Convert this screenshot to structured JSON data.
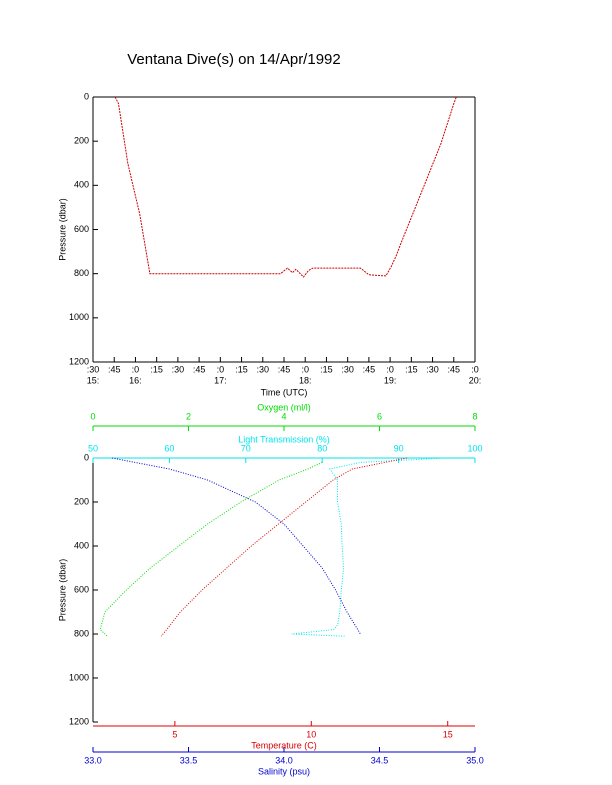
{
  "title": "Ventana Dive(s) on 14/Apr/1992",
  "chart_data": [
    {
      "type": "line",
      "x_label": "Time (UTC)",
      "y_label": "Pressure (dbar)",
      "y_reversed": true,
      "xlim": [
        15.5,
        20
      ],
      "ylim": [
        0,
        1200
      ],
      "yticks": [
        0,
        200,
        400,
        600,
        800,
        1000,
        1200
      ],
      "xticks": [
        {
          "value": 15.5,
          "label": ":30"
        },
        {
          "value": 15.75,
          "label": ":45"
        },
        {
          "value": 16,
          "label": ":0"
        },
        {
          "value": 16.25,
          "label": ":15"
        },
        {
          "value": 16.5,
          "label": ":30"
        },
        {
          "value": 16.75,
          "label": ":45"
        },
        {
          "value": 17,
          "label": ":0"
        },
        {
          "value": 17.25,
          "label": ":15"
        },
        {
          "value": 17.5,
          "label": ":30"
        },
        {
          "value": 17.75,
          "label": ":45"
        },
        {
          "value": 18,
          "label": ":0"
        },
        {
          "value": 18.25,
          "label": ":15"
        },
        {
          "value": 18.5,
          "label": ":30"
        },
        {
          "value": 18.75,
          "label": ":45"
        },
        {
          "value": 19,
          "label": ":0"
        },
        {
          "value": 19.25,
          "label": ":15"
        },
        {
          "value": 19.5,
          "label": ":30"
        },
        {
          "value": 19.75,
          "label": ":45"
        },
        {
          "value": 20,
          "label": ":0"
        }
      ],
      "xticks_hour": [
        {
          "value": 15.5,
          "label": "15:"
        },
        {
          "value": 16,
          "label": "16:"
        },
        {
          "value": 17,
          "label": "17:"
        },
        {
          "value": 18,
          "label": "18:"
        },
        {
          "value": 19,
          "label": "19:"
        },
        {
          "value": 20,
          "label": "20:"
        }
      ],
      "color": "#cc0000",
      "x": [
        15.76,
        15.8,
        15.91,
        16.05,
        16.17,
        16.76,
        17.71,
        17.79,
        17.85,
        17.89,
        17.98,
        18.04,
        18.09,
        18.65,
        18.75,
        18.95,
        19.01,
        19.07,
        19.13,
        19.36,
        19.6,
        19.75,
        19.78
      ],
      "values": [
        0,
        30,
        300,
        530,
        800,
        800,
        800,
        775,
        795,
        780,
        815,
        785,
        775,
        775,
        805,
        810,
        770,
        720,
        660,
        440,
        210,
        30,
        0
      ]
    },
    {
      "type": "profile",
      "y_label": "Pressure (dbar)",
      "y_reversed": true,
      "ylim": [
        0,
        1200
      ],
      "yticks": [
        0,
        200,
        400,
        600,
        800,
        1000,
        1200
      ],
      "x_axes": [
        {
          "label": "Light Transmission (%)",
          "color": "#00e5ee",
          "position": "top",
          "lim": [
            50,
            100
          ],
          "ticks": [
            50,
            60,
            70,
            80,
            90,
            100
          ]
        },
        {
          "label": "Oxygen (ml/l)",
          "color": "#00dd00",
          "position": "top",
          "lim": [
            0,
            8
          ],
          "ticks": [
            0,
            2,
            4,
            6,
            8
          ]
        },
        {
          "label": "Temperature (C)",
          "color": "#dd0000",
          "position": "bottom",
          "lim": [
            2,
            16
          ],
          "ticks": [
            5,
            10,
            15
          ]
        },
        {
          "label": "Salinity (psu)",
          "color": "#0000cc",
          "position": "bottom",
          "lim": [
            33,
            35
          ],
          "ticks": [
            {
              "value": 33,
              "label": "33.0"
            },
            {
              "value": 33.5,
              "label": "33.5"
            },
            {
              "value": 34,
              "label": "34.0"
            },
            {
              "value": 34.5,
              "label": "34.5"
            },
            {
              "value": 35,
              "label": "35.0"
            }
          ]
        }
      ],
      "series": [
        {
          "x_axis": 0,
          "x": [
            96,
            85,
            81,
            82,
            82,
            82.5,
            82.6,
            82.8,
            82.5,
            82.3,
            82,
            81.5,
            76,
            83
          ],
          "values": [
            0,
            20,
            50,
            100,
            200,
            300,
            400,
            500,
            600,
            700,
            760,
            780,
            800,
            810
          ]
        },
        {
          "x_axis": 1,
          "x": [
            4.8,
            4.5,
            3.9,
            3.1,
            2.4,
            1.8,
            1.2,
            0.7,
            0.25,
            0.15,
            0.3
          ],
          "values": [
            20,
            50,
            100,
            200,
            300,
            400,
            500,
            600,
            700,
            780,
            810
          ]
        },
        {
          "x_axis": 2,
          "x": [
            13.5,
            11.5,
            10.8,
            9.8,
            8.8,
            7.8,
            6.9,
            6,
            5.2,
            4.7,
            4.5
          ],
          "values": [
            0,
            50,
            100,
            200,
            300,
            400,
            500,
            600,
            700,
            780,
            810
          ]
        },
        {
          "x_axis": 3,
          "x": [
            33.1,
            33.4,
            33.6,
            33.85,
            34,
            34.1,
            34.2,
            34.27,
            34.33,
            34.4
          ],
          "values": [
            0,
            50,
            100,
            200,
            300,
            400,
            500,
            600,
            700,
            800
          ]
        }
      ]
    }
  ]
}
